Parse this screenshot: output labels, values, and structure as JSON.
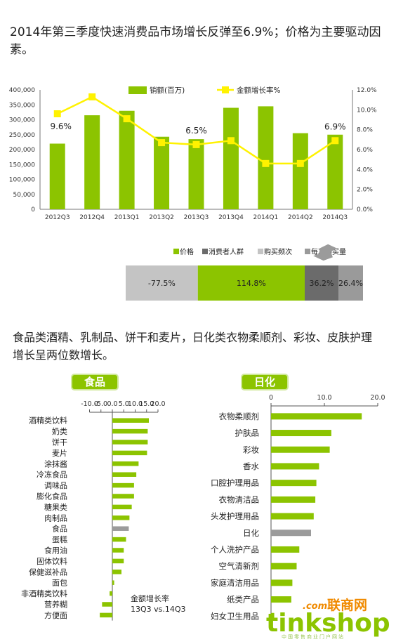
{
  "headline_top": "2014年第三季度快速消费品市场增长反弹至6.9%；价格为主要驱动因素。",
  "headline_mid": "食品类酒精、乳制品、饼干和麦片，日化类衣物柔顺剂、彩妆、皮肤护理增长呈两位数增长。",
  "colors": {
    "green": "#8cc400",
    "yellow": "#fff200",
    "dark_gray": "#6b6b6b",
    "light_gray": "#c4c4c4",
    "mid_gray": "#9a9a9a",
    "overall_gray": "#9b9b9b"
  },
  "chart_data": [
    {
      "type": "bar+line",
      "categories": [
        "2012Q3",
        "2012Q4",
        "2013Q1",
        "2013Q2",
        "2013Q3",
        "2013Q4",
        "2014Q1",
        "2014Q2",
        "2014Q3"
      ],
      "series": [
        {
          "name": "销额(百万)",
          "kind": "bar",
          "axis": "left",
          "values": [
            220000,
            315000,
            330000,
            243000,
            235000,
            340000,
            345000,
            255000,
            250000
          ]
        },
        {
          "name": "金额增长率%",
          "kind": "line",
          "axis": "right",
          "values": [
            9.6,
            11.3,
            9.1,
            6.7,
            6.5,
            6.9,
            4.6,
            4.6,
            6.9
          ]
        }
      ],
      "left_axis": {
        "min": 0,
        "max": 400000,
        "ticks": [
          "0",
          "50,000",
          "100,000",
          "150,000",
          "200,000",
          "250,000",
          "300,000",
          "350,000",
          "400,000"
        ]
      },
      "right_axis": {
        "min": 0,
        "max": 12,
        "ticks": [
          "0.0%",
          "2.0%",
          "4.0%",
          "6.0%",
          "8.0%",
          "10.0%",
          "12.0%"
        ]
      },
      "annotations": [
        {
          "index": 0,
          "text": "9.6%"
        },
        {
          "index": 4,
          "text": "6.5%"
        },
        {
          "index": 8,
          "text": "6.9%"
        }
      ],
      "legend": "top-center"
    },
    {
      "type": "bar",
      "orientation": "stacked-horizontal",
      "legend": [
        "价格",
        "消费者人群",
        "购买频次",
        "每次购买量"
      ],
      "segments": [
        {
          "name": "购买频次",
          "value": -77.5,
          "label": "-77.5%"
        },
        {
          "name": "价格",
          "value": 114.8,
          "label": "114.8%"
        },
        {
          "name": "消费者人群",
          "value": 36.2,
          "label": "36.2%"
        },
        {
          "name": "每次购买量",
          "value": 26.4,
          "label": "26.4%"
        }
      ]
    },
    {
      "type": "bar",
      "orientation": "horizontal",
      "header": "食品",
      "axis": {
        "min": -10,
        "max": 20,
        "ticks": [
          "-10.0",
          "-5.0",
          "0.0",
          "5.0",
          "10.0",
          "15.0",
          "20.0"
        ]
      },
      "note_line1": "金额增长率",
      "note_line2": "13Q3 vs.14Q3",
      "categories": [
        "酒精类饮料",
        "奶类",
        "饼干",
        "麦片",
        "涂抹酱",
        "冷冻食品",
        "调味品",
        "膨化食品",
        "糖果类",
        "肉制品",
        "食品",
        "蛋糕",
        "食用油",
        "固体饮料",
        "保健滋补品",
        "面包",
        "非酒精类饮料",
        "营养糊",
        "方便面"
      ],
      "values": [
        16,
        15.5,
        15.5,
        15.2,
        11.5,
        10.5,
        9.5,
        9.5,
        8.5,
        7.5,
        7.2,
        6,
        5,
        5,
        4,
        0.8,
        -1.2,
        -4.5,
        -5.5
      ],
      "highlight": "食品"
    },
    {
      "type": "bar",
      "orientation": "horizontal",
      "header": "日化",
      "axis": {
        "min": 0,
        "max": 20,
        "ticks": [
          "0",
          "10.0",
          "20.0"
        ]
      },
      "categories": [
        "衣物柔顺剂",
        "护肤品",
        "彩妆",
        "香水",
        "口腔护理用品",
        "衣物清洁品",
        "头发护理用品",
        "日化",
        "个人洗护产品",
        "空气清新剂",
        "家庭清洁用品",
        "纸类产品",
        "妇女卫生用品"
      ],
      "values": [
        17,
        11.3,
        11,
        9,
        8.5,
        8.3,
        8,
        7.5,
        5.3,
        4.8,
        4,
        3.8,
        0.6
      ],
      "highlight": "日化"
    }
  ],
  "brand": {
    "name": "tinkshop",
    "tag": ".com",
    "cn": "联商网",
    "sub": "中国零售商业门户网站"
  }
}
